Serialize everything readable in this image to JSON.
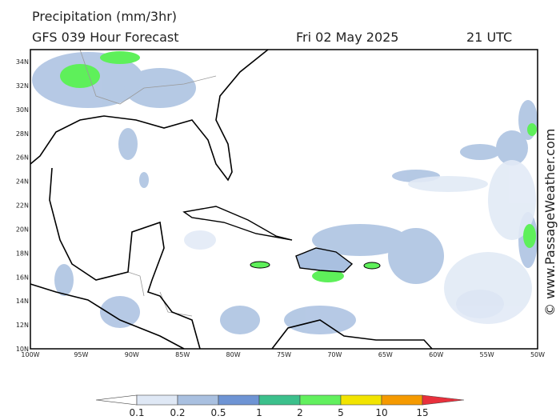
{
  "header": {
    "title": "Precipitation (mm/3hr)",
    "model": "GFS 039 Hour Forecast",
    "date": "Fri 02 May 2025",
    "time": "21 UTC"
  },
  "map": {
    "lat_labels": [
      "34N",
      "32N",
      "30N",
      "28N",
      "26N",
      "24N",
      "22N",
      "20N",
      "18N",
      "16N",
      "14N",
      "12N",
      "10N"
    ],
    "lon_labels": [
      "100W",
      "95W",
      "90W",
      "85W",
      "80W",
      "75W",
      "70W",
      "65W",
      "60W",
      "55W",
      "50W"
    ],
    "watermark": "© www.PassageWeather.com"
  },
  "colorbar": {
    "labels": [
      "0.1",
      "0.2",
      "0.5",
      "1",
      "2",
      "5",
      "10",
      "15"
    ]
  }
}
